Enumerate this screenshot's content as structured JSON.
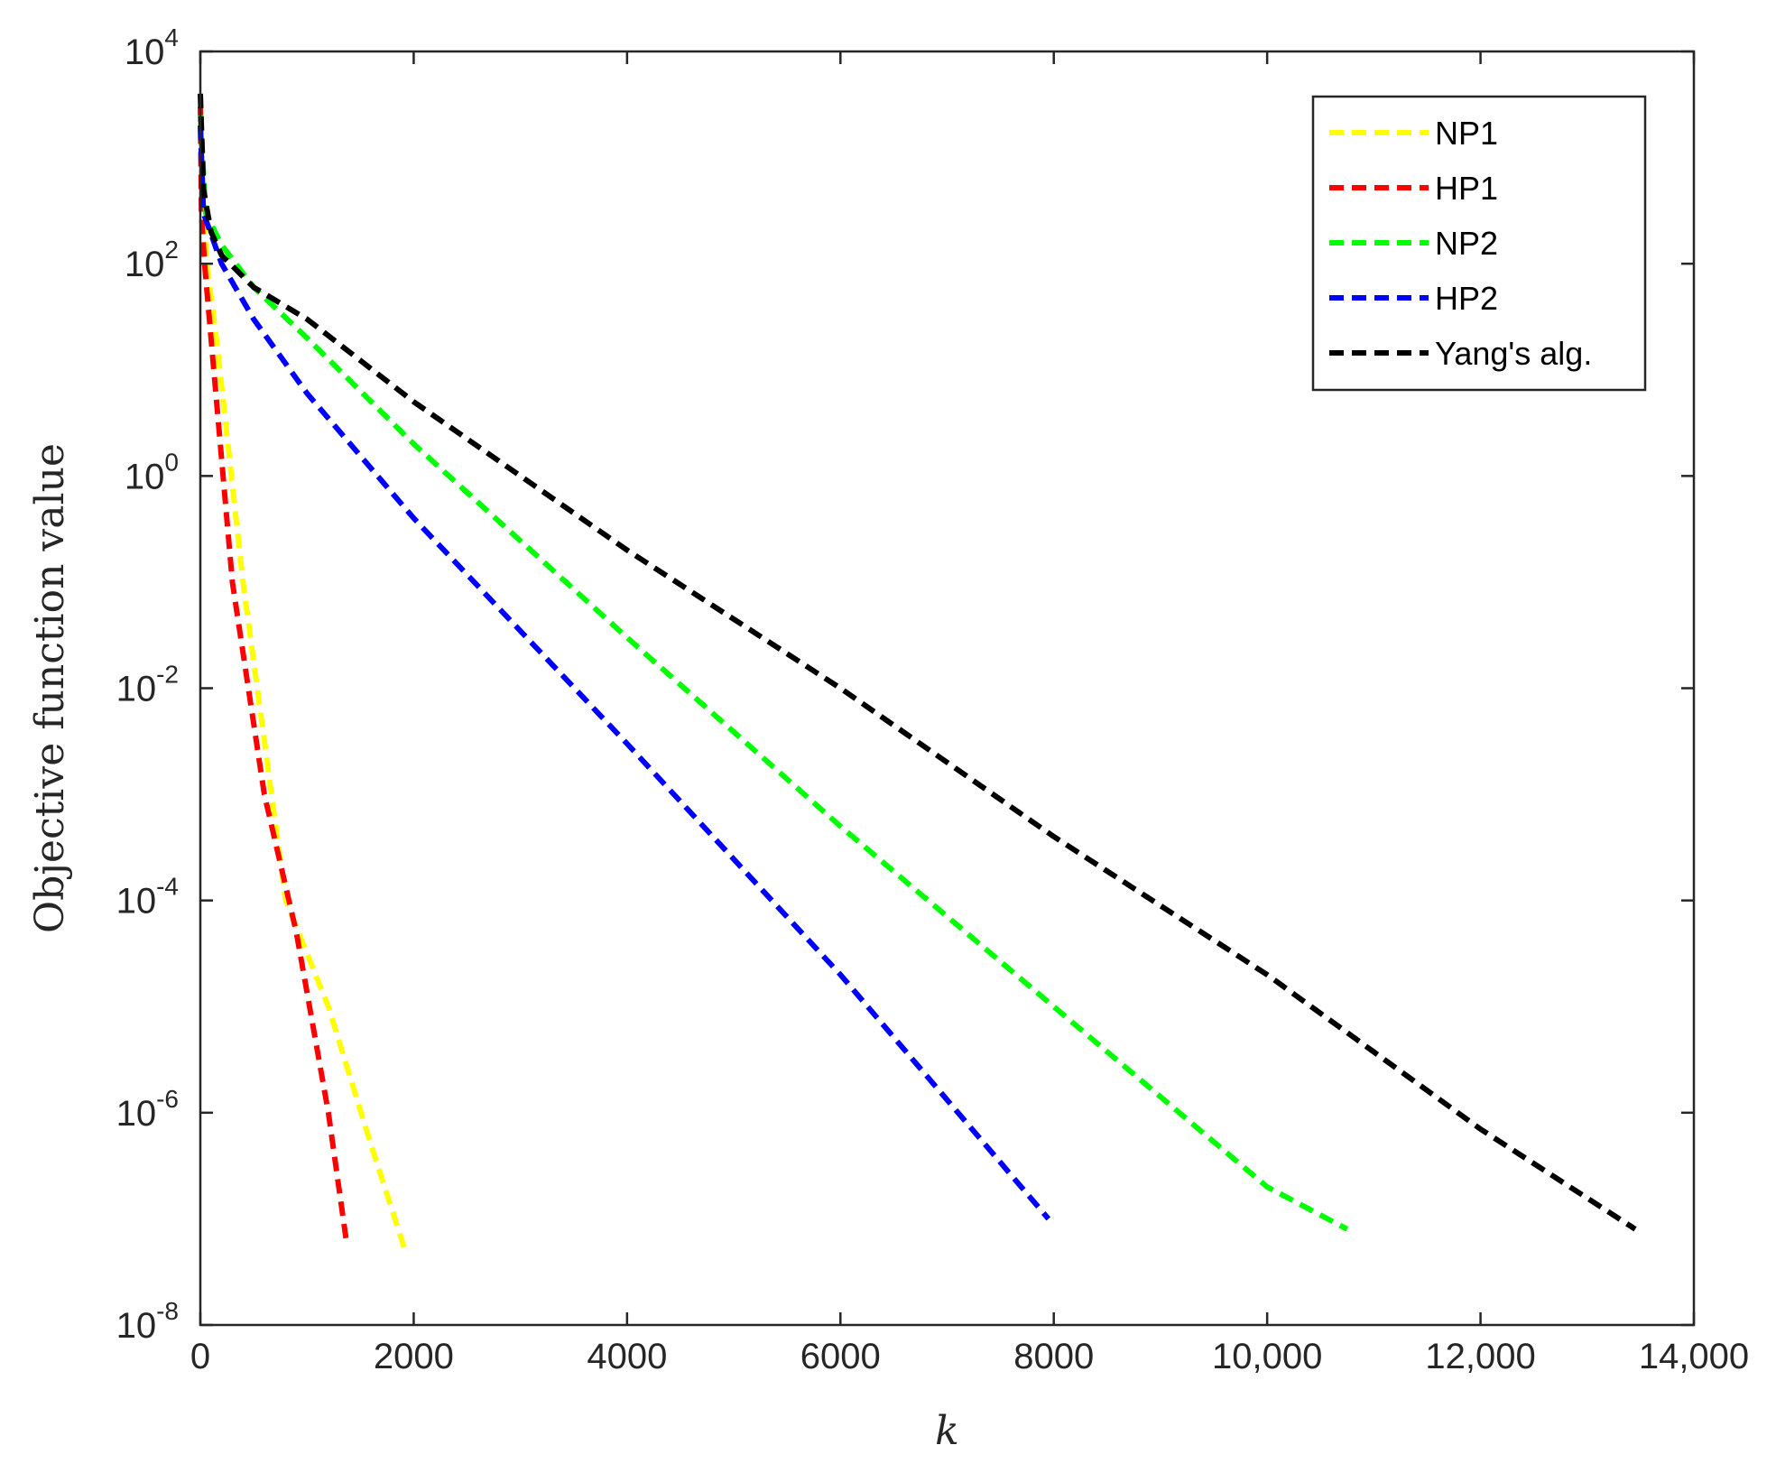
{
  "chart_data": {
    "type": "line",
    "xlabel": "k",
    "ylabel": "Objective function value",
    "xlim": [
      0,
      14000
    ],
    "ylim": [
      1e-08,
      10000
    ],
    "yscale": "log",
    "grid": false,
    "legend_position": "top-right",
    "x_ticks": [
      {
        "value": 0,
        "label": "0"
      },
      {
        "value": 2000,
        "label": "2000"
      },
      {
        "value": 4000,
        "label": "4000"
      },
      {
        "value": 6000,
        "label": "6000"
      },
      {
        "value": 8000,
        "label": "8000"
      },
      {
        "value": 10000,
        "label": "10,000"
      },
      {
        "value": 12000,
        "label": "12,000"
      },
      {
        "value": 14000,
        "label": "14,000"
      }
    ],
    "y_ticks": [
      {
        "value": 1e-08,
        "base": "10",
        "exp": "-8"
      },
      {
        "value": 1e-06,
        "base": "10",
        "exp": "-6"
      },
      {
        "value": 0.0001,
        "base": "10",
        "exp": "-4"
      },
      {
        "value": 0.01,
        "base": "10",
        "exp": "-2"
      },
      {
        "value": 1,
        "base": "10",
        "exp": "0"
      },
      {
        "value": 100,
        "base": "10",
        "exp": "2"
      },
      {
        "value": 10000,
        "base": "10",
        "exp": "4"
      }
    ],
    "series": [
      {
        "name": "NP1",
        "color": "#ffff00",
        "x": [
          0,
          20,
          60,
          150,
          400,
          800,
          1200,
          1600,
          1920
        ],
        "y": [
          3000,
          500,
          100,
          20,
          0.1,
          0.0001,
          1e-05,
          5e-07,
          5e-08
        ]
      },
      {
        "name": "HP1",
        "color": "#ff0000",
        "x": [
          0,
          10,
          40,
          100,
          300,
          600,
          900,
          1200,
          1370
        ],
        "y": [
          3000,
          300,
          100,
          20,
          0.1,
          0.001,
          5e-05,
          1e-06,
          6e-08
        ]
      },
      {
        "name": "NP2",
        "color": "#00ff00",
        "x": [
          0,
          50,
          200,
          500,
          1000,
          2000,
          4000,
          6000,
          8000,
          10000,
          10750
        ],
        "y": [
          2500,
          300,
          150,
          60,
          20,
          2,
          0.03,
          0.0005,
          1e-05,
          2e-07,
          8e-08
        ]
      },
      {
        "name": "HP2",
        "color": "#0000ff",
        "x": [
          0,
          30,
          200,
          500,
          1000,
          2000,
          4000,
          6000,
          7950
        ],
        "y": [
          2000,
          300,
          100,
          30,
          6,
          0.4,
          0.003,
          2e-05,
          1e-07
        ]
      },
      {
        "name": "Yang's alg.",
        "color": "#000000",
        "x": [
          0,
          30,
          100,
          200,
          500,
          1000,
          2000,
          4000,
          6000,
          8000,
          10000,
          12000,
          13450
        ],
        "y": [
          4000,
          500,
          200,
          120,
          60,
          30,
          5,
          0.2,
          0.01,
          0.0004,
          2e-05,
          7e-07,
          8e-08
        ]
      }
    ]
  }
}
